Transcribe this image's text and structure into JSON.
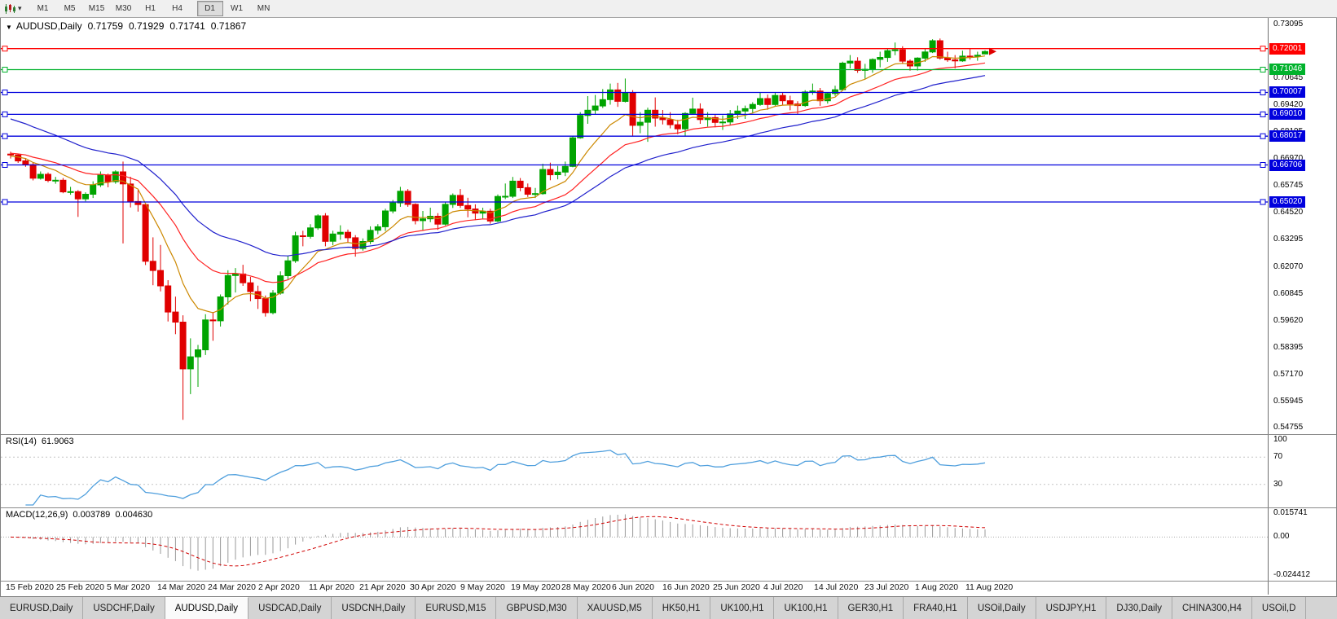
{
  "toolbar": {
    "timeframes": [
      "M1",
      "M5",
      "M15",
      "M30",
      "H1",
      "H4",
      "D1",
      "W1",
      "MN"
    ],
    "active_timeframe": "D1"
  },
  "icons": {
    "collapse": "▼",
    "dropdown": "▾"
  },
  "chart": {
    "symbol": "AUDUSD,Daily",
    "open": "0.71759",
    "high": "0.71929",
    "low": "0.71741",
    "close": "0.71867"
  },
  "indicators": {
    "rsi": {
      "label": "RSI(14)",
      "value": "61.9063"
    },
    "macd": {
      "label": "MACD(12,26,9)",
      "value_main": "0.003789",
      "value_signal": "0.004630"
    }
  },
  "dates": [
    "15 Feb 2020",
    "25 Feb 2020",
    "5 Mar 2020",
    "14 Mar 2020",
    "24 Mar 2020",
    "2 Apr 2020",
    "11 Apr 2020",
    "21 Apr 2020",
    "30 Apr 2020",
    "9 May 2020",
    "19 May 2020",
    "28 May 2020",
    "6 Jun 2020",
    "16 Jun 2020",
    "25 Jun 2020",
    "4 Jul 2020",
    "14 Jul 2020",
    "23 Jul 2020",
    "1 Aug 2020",
    "11 Aug 2020"
  ],
  "tabs": {
    "active_index": 2,
    "items": [
      "EURUSD,Daily",
      "USDCHF,Daily",
      "AUDUSD,Daily",
      "USDCAD,Daily",
      "USDCNH,Daily",
      "EURUSD,M15",
      "GBPUSD,M30",
      "XAUUSD,M5",
      "HK50,H1",
      "UK100,H1",
      "UK100,H1",
      "GER30,H1",
      "FRA40,H1",
      "USOil,Daily",
      "USDJPY,H1",
      "DJ30,Daily",
      "CHINA300,H4",
      "USOil,D"
    ]
  },
  "chart_data": {
    "main": {
      "type": "candlestick",
      "title": "AUDUSD,Daily",
      "y_range": [
        0.5445,
        0.734
      ],
      "y_ticks": [
        0.73095,
        0.7187,
        0.70645,
        0.6942,
        0.68195,
        0.6697,
        0.65745,
        0.6452,
        0.63295,
        0.6207,
        0.60845,
        0.5962,
        0.58395,
        0.5717,
        0.55945,
        0.54755
      ],
      "colors": {
        "up": "#00a400",
        "down": "#e00000"
      },
      "moving_averages": [
        {
          "name": "ma-fast",
          "period": 9,
          "seed": 0.671,
          "color": "#cc8800"
        },
        {
          "name": "ma-mid",
          "period": 20,
          "seed": 0.6725,
          "color": "#ff2222"
        },
        {
          "name": "ma-slow",
          "period": 34,
          "seed": 0.689,
          "color": "#2020cc"
        }
      ],
      "horizontal_lines": [
        {
          "price": 0.72001,
          "color": "#ff0000"
        },
        {
          "price": 0.71046,
          "color": "#00b22c"
        },
        {
          "price": 0.70007,
          "color": "#0000dd"
        },
        {
          "price": 0.6901,
          "color": "#0000dd"
        },
        {
          "price": 0.68017,
          "color": "#0000dd"
        },
        {
          "price": 0.66706,
          "color": "#0000dd"
        },
        {
          "price": 0.6502,
          "color": "#0000dd"
        }
      ],
      "candles": [
        [
          0.672,
          0.6731,
          0.67,
          0.6716
        ],
        [
          0.6716,
          0.6722,
          0.668,
          0.6689
        ],
        [
          0.6689,
          0.6701,
          0.6662,
          0.6672
        ],
        [
          0.6672,
          0.668,
          0.66,
          0.661
        ],
        [
          0.661,
          0.6641,
          0.6604,
          0.6628
        ],
        [
          0.6628,
          0.6636,
          0.6592,
          0.66
        ],
        [
          0.66,
          0.6616,
          0.6585,
          0.6601
        ],
        [
          0.6601,
          0.6611,
          0.6542,
          0.6548
        ],
        [
          0.6548,
          0.6571,
          0.6535,
          0.6549
        ],
        [
          0.6549,
          0.6556,
          0.6434,
          0.6516
        ],
        [
          0.6516,
          0.6546,
          0.6505,
          0.6537
        ],
        [
          0.6537,
          0.6596,
          0.652,
          0.658
        ],
        [
          0.658,
          0.6641,
          0.657,
          0.6624
        ],
        [
          0.6624,
          0.6631,
          0.6569,
          0.6594
        ],
        [
          0.6594,
          0.6646,
          0.6585,
          0.6639
        ],
        [
          0.6639,
          0.6686,
          0.6313,
          0.6584
        ],
        [
          0.6584,
          0.6617,
          0.6477,
          0.6504
        ],
        [
          0.6504,
          0.6556,
          0.6458,
          0.649
        ],
        [
          0.649,
          0.6496,
          0.6215,
          0.6232
        ],
        [
          0.6232,
          0.6341,
          0.6123,
          0.619
        ],
        [
          0.619,
          0.6306,
          0.6095,
          0.612
        ],
        [
          0.612,
          0.6146,
          0.5958,
          0.6001
        ],
        [
          0.6001,
          0.6071,
          0.59,
          0.5955
        ],
        [
          0.5955,
          0.5986,
          0.551,
          0.5742
        ],
        [
          0.5742,
          0.5881,
          0.5627,
          0.5797
        ],
        [
          0.5797,
          0.5851,
          0.566,
          0.5829
        ],
        [
          0.5829,
          0.5991,
          0.5805,
          0.5965
        ],
        [
          0.5965,
          0.6001,
          0.587,
          0.5961
        ],
        [
          0.5961,
          0.6081,
          0.5935,
          0.607
        ],
        [
          0.607,
          0.6191,
          0.6035,
          0.6167
        ],
        [
          0.6167,
          0.6201,
          0.609,
          0.6174
        ],
        [
          0.6174,
          0.6216,
          0.612,
          0.6134
        ],
        [
          0.6134,
          0.6161,
          0.605,
          0.6094
        ],
        [
          0.6094,
          0.6121,
          0.6015,
          0.6062
        ],
        [
          0.6062,
          0.6076,
          0.598,
          0.5998
        ],
        [
          0.5998,
          0.6101,
          0.599,
          0.6087
        ],
        [
          0.6087,
          0.6186,
          0.608,
          0.6166
        ],
        [
          0.6166,
          0.6256,
          0.615,
          0.6234
        ],
        [
          0.6234,
          0.6366,
          0.6225,
          0.6348
        ],
        [
          0.6348,
          0.6371,
          0.63,
          0.6345
        ],
        [
          0.6345,
          0.6401,
          0.6335,
          0.6384
        ],
        [
          0.6384,
          0.6446,
          0.6375,
          0.6439
        ],
        [
          0.6439,
          0.6451,
          0.63,
          0.6323
        ],
        [
          0.6323,
          0.6371,
          0.6305,
          0.6356
        ],
        [
          0.6356,
          0.6396,
          0.633,
          0.6364
        ],
        [
          0.6364,
          0.6376,
          0.6315,
          0.6339
        ],
        [
          0.6339,
          0.6351,
          0.6253,
          0.629
        ],
        [
          0.629,
          0.6336,
          0.628,
          0.6322
        ],
        [
          0.6322,
          0.6391,
          0.631,
          0.6373
        ],
        [
          0.6373,
          0.6401,
          0.6355,
          0.6389
        ],
        [
          0.6389,
          0.6471,
          0.637,
          0.6461
        ],
        [
          0.6461,
          0.6511,
          0.645,
          0.6498
        ],
        [
          0.6498,
          0.6571,
          0.648,
          0.6551
        ],
        [
          0.6551,
          0.6561,
          0.648,
          0.6491
        ],
        [
          0.6491,
          0.6496,
          0.64,
          0.6417
        ],
        [
          0.6417,
          0.6461,
          0.6372,
          0.6425
        ],
        [
          0.6425,
          0.6476,
          0.641,
          0.6437
        ],
        [
          0.6437,
          0.6451,
          0.6375,
          0.6401
        ],
        [
          0.6401,
          0.6501,
          0.6395,
          0.6491
        ],
        [
          0.6491,
          0.6541,
          0.6475,
          0.6532
        ],
        [
          0.6532,
          0.6561,
          0.6475,
          0.6486
        ],
        [
          0.6486,
          0.6521,
          0.6432,
          0.647
        ],
        [
          0.647,
          0.6491,
          0.642,
          0.6451
        ],
        [
          0.6451,
          0.6476,
          0.6425,
          0.646
        ],
        [
          0.646,
          0.6471,
          0.6403,
          0.6415
        ],
        [
          0.6415,
          0.6536,
          0.641,
          0.6527
        ],
        [
          0.6527,
          0.6586,
          0.6515,
          0.6528
        ],
        [
          0.6528,
          0.6616,
          0.652,
          0.6597
        ],
        [
          0.6597,
          0.6611,
          0.6551,
          0.6567
        ],
        [
          0.6567,
          0.6586,
          0.6525,
          0.6537
        ],
        [
          0.6537,
          0.6566,
          0.652,
          0.654
        ],
        [
          0.654,
          0.6676,
          0.6535,
          0.665
        ],
        [
          0.665,
          0.6681,
          0.6601,
          0.6626
        ],
        [
          0.6626,
          0.6666,
          0.6605,
          0.6638
        ],
        [
          0.6638,
          0.6686,
          0.662,
          0.6664
        ],
        [
          0.6664,
          0.6801,
          0.666,
          0.6794
        ],
        [
          0.6794,
          0.6911,
          0.679,
          0.6896
        ],
        [
          0.6896,
          0.6984,
          0.6858,
          0.692
        ],
        [
          0.692,
          0.6989,
          0.69,
          0.6939
        ],
        [
          0.6939,
          0.7016,
          0.693,
          0.6968
        ],
        [
          0.6968,
          0.7041,
          0.6945,
          0.7012
        ],
        [
          0.7012,
          0.7044,
          0.6935,
          0.696
        ],
        [
          0.696,
          0.7064,
          0.6955,
          0.7
        ],
        [
          0.7,
          0.7011,
          0.68,
          0.6851
        ],
        [
          0.6851,
          0.6911,
          0.6815,
          0.6865
        ],
        [
          0.6865,
          0.6931,
          0.6776,
          0.692
        ],
        [
          0.692,
          0.6978,
          0.6845,
          0.6884
        ],
        [
          0.6884,
          0.6921,
          0.6855,
          0.6877
        ],
        [
          0.6877,
          0.6911,
          0.6837,
          0.6854
        ],
        [
          0.6854,
          0.6876,
          0.681,
          0.6835
        ],
        [
          0.6835,
          0.6911,
          0.68,
          0.6905
        ],
        [
          0.6905,
          0.6977,
          0.69,
          0.6925
        ],
        [
          0.6925,
          0.6951,
          0.6858,
          0.6877
        ],
        [
          0.6877,
          0.6911,
          0.6845,
          0.6886
        ],
        [
          0.6886,
          0.6901,
          0.6842,
          0.6864
        ],
        [
          0.6864,
          0.6896,
          0.683,
          0.6866
        ],
        [
          0.6866,
          0.6921,
          0.685,
          0.6903
        ],
        [
          0.6903,
          0.6941,
          0.688,
          0.6916
        ],
        [
          0.6916,
          0.6941,
          0.688,
          0.6927
        ],
        [
          0.6927,
          0.6956,
          0.6905,
          0.6946
        ],
        [
          0.6946,
          0.6999,
          0.694,
          0.6973
        ],
        [
          0.6973,
          0.6991,
          0.6922,
          0.6946
        ],
        [
          0.6946,
          0.7001,
          0.694,
          0.6987
        ],
        [
          0.6987,
          0.7001,
          0.6945,
          0.6963
        ],
        [
          0.6963,
          0.6986,
          0.692,
          0.6948
        ],
        [
          0.6948,
          0.6961,
          0.69,
          0.6941
        ],
        [
          0.6941,
          0.7011,
          0.6935,
          0.7003
        ],
        [
          0.7003,
          0.7041,
          0.699,
          0.7007
        ],
        [
          0.7007,
          0.7021,
          0.694,
          0.6963
        ],
        [
          0.6963,
          0.7001,
          0.695,
          0.6996
        ],
        [
          0.6996,
          0.7031,
          0.6985,
          0.7013
        ],
        [
          0.7013,
          0.7141,
          0.701,
          0.7134
        ],
        [
          0.7134,
          0.7171,
          0.711,
          0.7143
        ],
        [
          0.7143,
          0.7161,
          0.709,
          0.7101
        ],
        [
          0.7101,
          0.7131,
          0.7063,
          0.7106
        ],
        [
          0.7106,
          0.7156,
          0.709,
          0.7151
        ],
        [
          0.7151,
          0.7186,
          0.7115,
          0.716
        ],
        [
          0.716,
          0.7198,
          0.714,
          0.7191
        ],
        [
          0.7191,
          0.7228,
          0.717,
          0.7195
        ],
        [
          0.7195,
          0.7211,
          0.713,
          0.7143
        ],
        [
          0.7143,
          0.7151,
          0.71,
          0.7121
        ],
        [
          0.7121,
          0.7161,
          0.71,
          0.7157
        ],
        [
          0.7157,
          0.7201,
          0.714,
          0.7185
        ],
        [
          0.7185,
          0.7243,
          0.718,
          0.7236
        ],
        [
          0.7236,
          0.7246,
          0.715,
          0.7157
        ],
        [
          0.7157,
          0.7186,
          0.714,
          0.7149
        ],
        [
          0.7149,
          0.7171,
          0.711,
          0.7144
        ],
        [
          0.7144,
          0.7191,
          0.714,
          0.7166
        ],
        [
          0.7166,
          0.7201,
          0.715,
          0.7165
        ],
        [
          0.7165,
          0.7186,
          0.7145,
          0.717
        ],
        [
          0.71759,
          0.71929,
          0.71741,
          0.71867
        ]
      ]
    },
    "rsi": {
      "type": "line",
      "name": "RSI(14)",
      "period": 14,
      "current": 61.9063,
      "levels": [
        70,
        30
      ],
      "scale_labels": [
        100,
        70,
        30
      ],
      "range": [
        0,
        100
      ],
      "color": "#4f9fdd"
    },
    "macd": {
      "type": "macd",
      "name": "MACD(12,26,9)",
      "fast": 12,
      "slow": 26,
      "signal": 9,
      "current_main": 0.003789,
      "current_signal": 0.00463,
      "scale_labels": [
        "0.015741",
        "0.00",
        "-0.024412"
      ],
      "plot_range": [
        -0.0265,
        0.0175
      ],
      "histogram_color": "#999999",
      "signal_color": "#d00000"
    }
  }
}
